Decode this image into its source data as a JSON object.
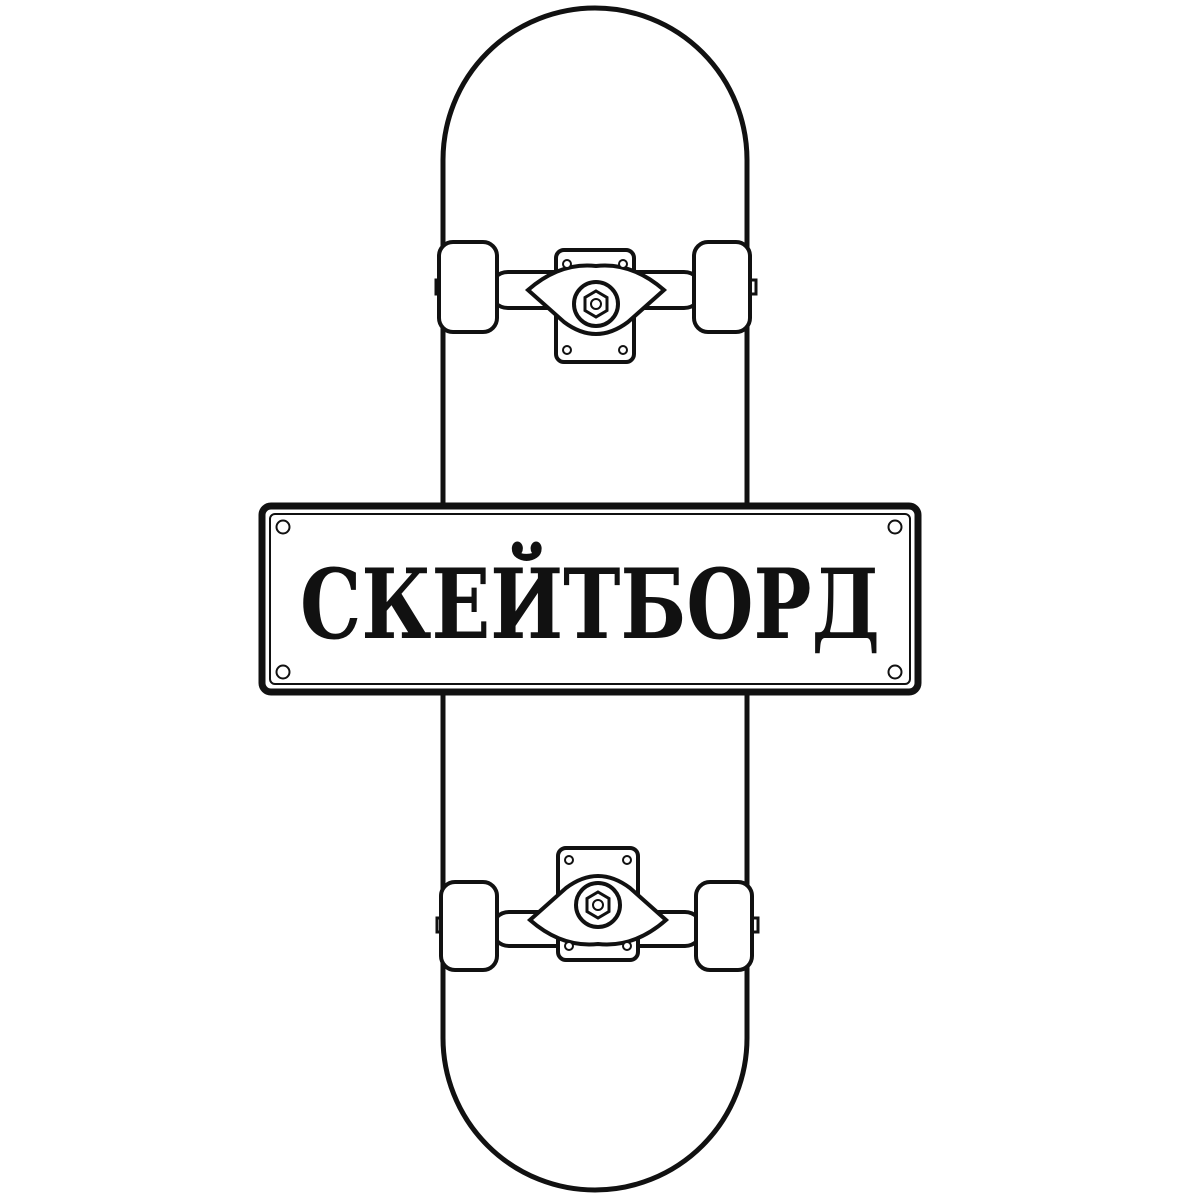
{
  "sign": {
    "text": "СКЕЙТБОРД"
  },
  "colors": {
    "outline": "#111111",
    "fill": "#ffffff"
  },
  "icons": {
    "deck": "skateboard-deck-icon",
    "truck": "skateboard-truck-icon",
    "wheel": "wheel-icon",
    "bolt": "bolt-icon",
    "screw": "screw-icon"
  }
}
